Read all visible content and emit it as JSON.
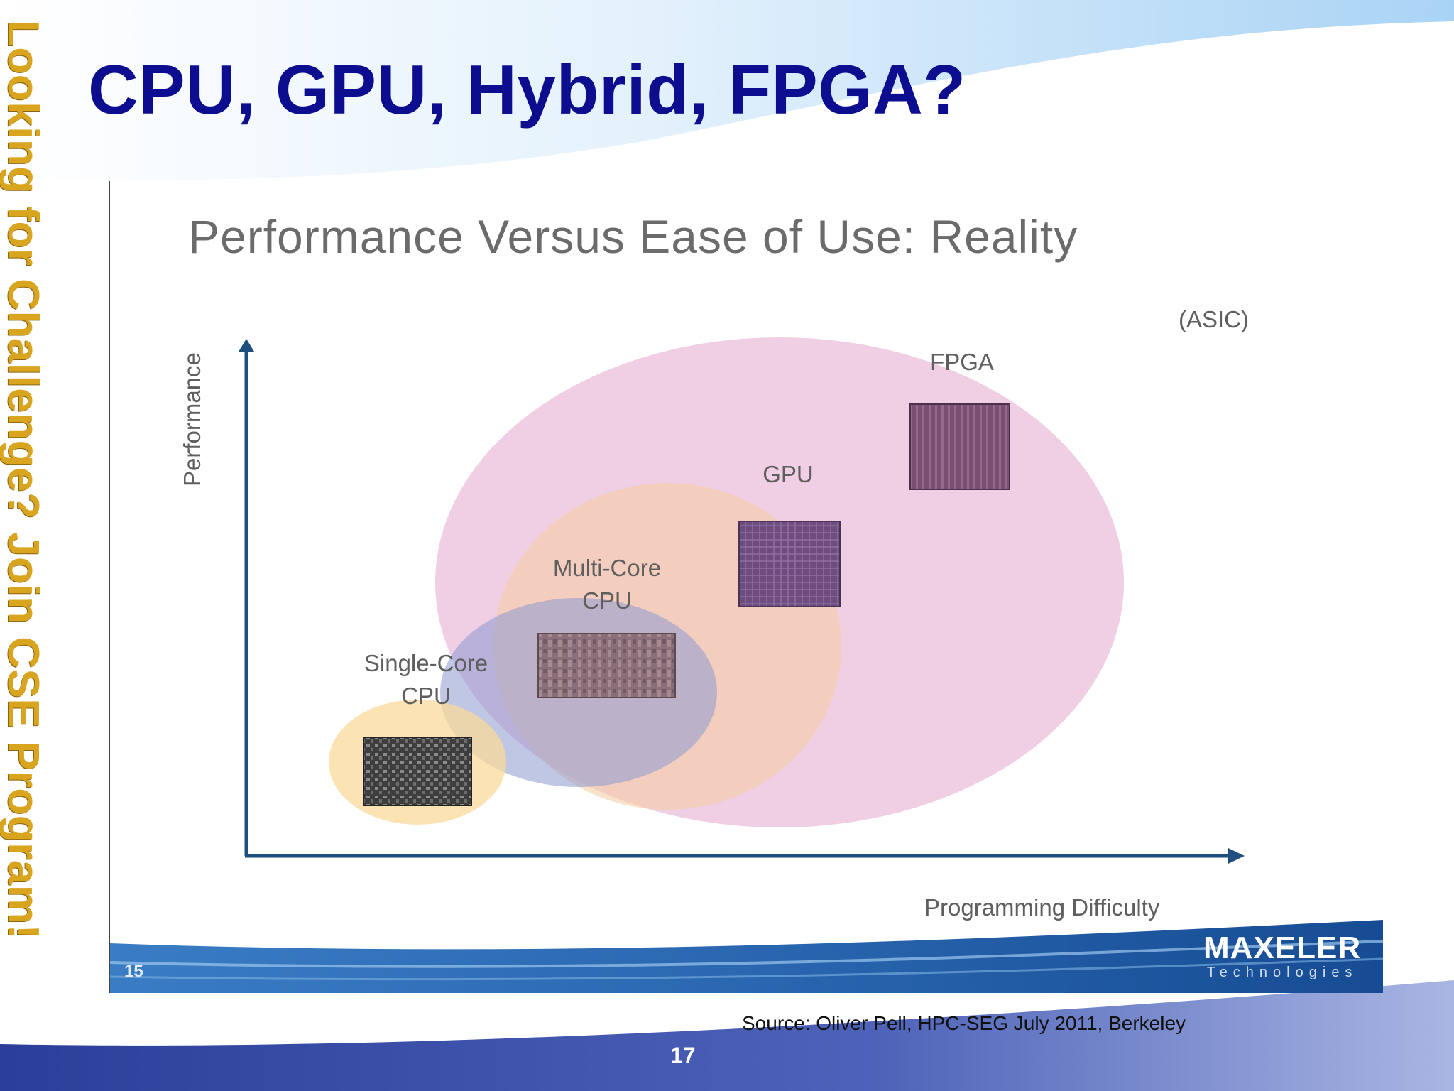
{
  "slide": {
    "title": "CPU, GPU, Hybrid, FPGA?",
    "side_banner": "Looking for Challenge?  Join CSE Program!",
    "source": "Source: Oliver Pell, HPC-SEG  July 2011, Berkeley",
    "page_number": "17"
  },
  "embedded_slide": {
    "title": "Performance Versus Ease of Use: Reality",
    "y_axis_label": "Performance",
    "x_axis_label": "Programming Difficulty",
    "asic_label": "(ASIC)",
    "nodes": [
      {
        "id": "single-core",
        "label_line1": "Single-Core",
        "label_line2": "CPU",
        "color": "#f9d99a"
      },
      {
        "id": "multi-core",
        "label_line1": "Multi-Core",
        "label_line2": "CPU",
        "color": "#8c99cf"
      },
      {
        "id": "gpu",
        "label_line1": "GPU",
        "label_line2": "",
        "color": "#f5cfa6"
      },
      {
        "id": "fpga",
        "label_line1": "FPGA",
        "label_line2": "",
        "color": "#e8b4d6"
      }
    ],
    "slide_number": "15",
    "logo_text": "MAXELER",
    "logo_subtext": "Technologies"
  },
  "colors": {
    "title": "#0c0e8f",
    "banner": "#d9a51f",
    "axis": "#1e4f7f",
    "band": "#1d5ea8"
  }
}
